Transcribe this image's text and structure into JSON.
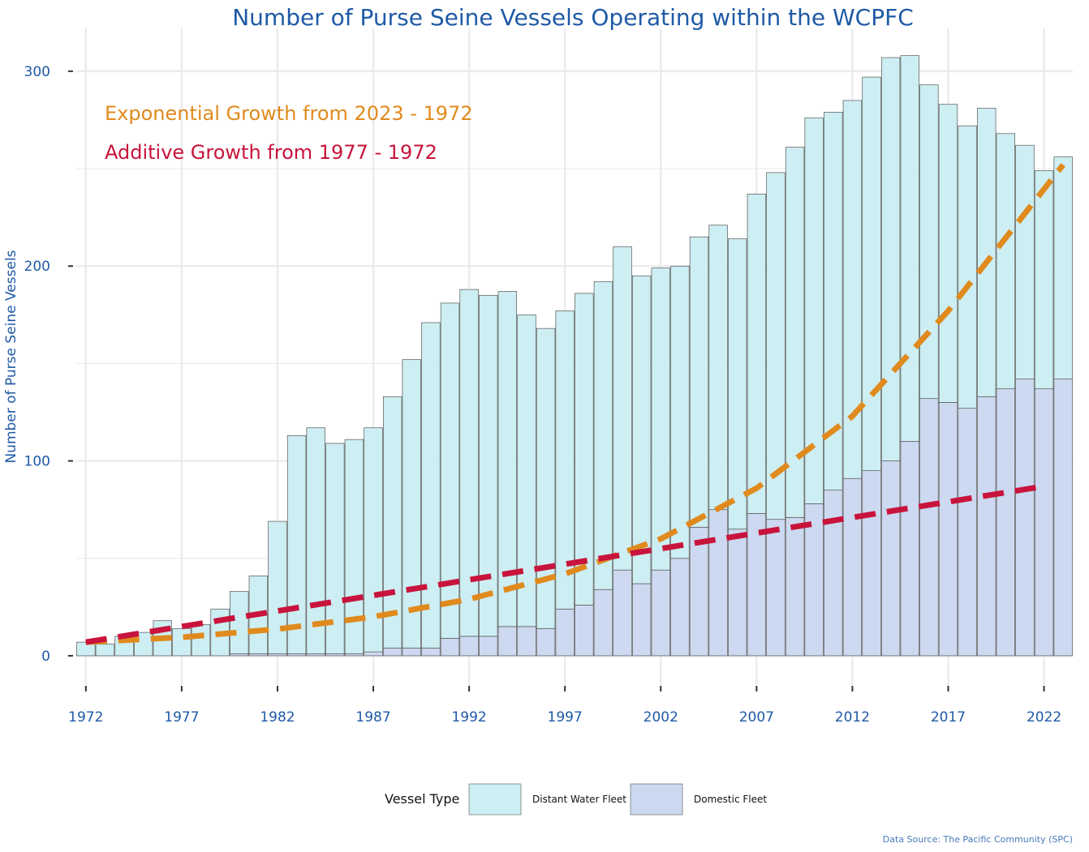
{
  "chart_data": {
    "type": "bar",
    "title": "Number of Purse Seine Vessels Operating within the WCPFC",
    "xlabel": "",
    "ylabel": "Number of Purse Seine Vessels",
    "ylim": [
      -15,
      322
    ],
    "xlim": [
      1971.5,
      2023.5
    ],
    "stacked": true,
    "grid": true,
    "x_ticks": [
      1972,
      1977,
      1982,
      1987,
      1992,
      1997,
      2002,
      2007,
      2012,
      2017,
      2022
    ],
    "y_ticks": [
      0,
      100,
      200,
      300
    ],
    "x_tick_labels": [
      "1972",
      "1977",
      "1982",
      "1987",
      "1992",
      "1997",
      "2002",
      "2007",
      "2012",
      "2017",
      "2022"
    ],
    "y_tick_labels": [
      "0",
      "100",
      "200",
      "300"
    ],
    "categories": [
      1972,
      1973,
      1974,
      1975,
      1976,
      1977,
      1978,
      1979,
      1980,
      1981,
      1982,
      1983,
      1984,
      1985,
      1986,
      1987,
      1988,
      1989,
      1990,
      1991,
      1992,
      1993,
      1994,
      1995,
      1996,
      1997,
      1998,
      1999,
      2000,
      2001,
      2002,
      2003,
      2004,
      2005,
      2006,
      2007,
      2008,
      2009,
      2010,
      2011,
      2012,
      2013,
      2014,
      2015,
      2016,
      2017,
      2018,
      2019,
      2020,
      2021,
      2022,
      2023
    ],
    "series": [
      {
        "name": "Domestic Fleet",
        "color": "#ccd9f0",
        "values": [
          0,
          0,
          0,
          0,
          0,
          0,
          0,
          0,
          1,
          1,
          1,
          1,
          1,
          1,
          1,
          2,
          4,
          4,
          4,
          9,
          10,
          10,
          15,
          15,
          14,
          24,
          26,
          34,
          44,
          37,
          44,
          50,
          66,
          75,
          65,
          73,
          70,
          71,
          78,
          85,
          91,
          95,
          100,
          110,
          132,
          130,
          127,
          133,
          137,
          142,
          137,
          142
        ]
      },
      {
        "name": "Distant Water Fleet",
        "color": "#cdeef2",
        "values": [
          7,
          6,
          10,
          12,
          18,
          14,
          16,
          24,
          32,
          40,
          68,
          112,
          116,
          108,
          110,
          115,
          129,
          148,
          167,
          172,
          178,
          175,
          172,
          160,
          154,
          153,
          160,
          158,
          166,
          158,
          155,
          150,
          149,
          146,
          149,
          164,
          178,
          190,
          198,
          194,
          194,
          202,
          207,
          198,
          161,
          153,
          145,
          148,
          131,
          120,
          112,
          114
        ]
      }
    ],
    "trend_lines": [
      {
        "label": "Exponential Growth from 2023 - 1972",
        "color": "#e08a1e",
        "x": [
          1972,
          1977,
          1982,
          1987,
          1992,
          1997,
          2002,
          2007,
          2012,
          2017,
          2023
        ],
        "y": [
          7,
          9.5,
          13.7,
          20,
          29,
          42,
          60,
          86,
          123,
          177,
          252
        ]
      },
      {
        "label": "Additive Growth from 1977 - 1972",
        "color": "#c8143c",
        "x": [
          1972,
          1977,
          1982,
          1987,
          1992,
          1997,
          2002,
          2007,
          2012,
          2017,
          2022
        ],
        "y": [
          7,
          15,
          23,
          31,
          39,
          47,
          55,
          63,
          71,
          79,
          87
        ]
      }
    ],
    "legend": {
      "title": "Vessel Type",
      "position": "bottom",
      "items": [
        "Distant Water Fleet",
        "Domestic Fleet"
      ]
    },
    "source_note": "Data Source: The Pacific Community (SPC)"
  },
  "colors": {
    "title": "#1f5aa6",
    "axis_text": "#1f5aa6",
    "grid": "#ebebeb",
    "bar_stroke": "#555555"
  }
}
